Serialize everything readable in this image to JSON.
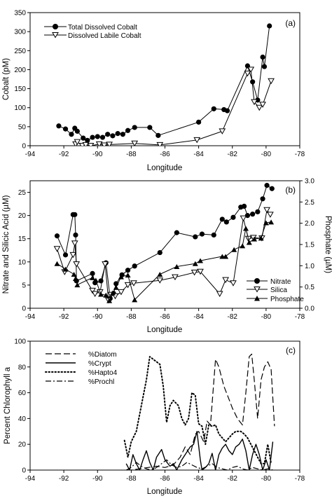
{
  "chart_data": [
    {
      "type": "line",
      "panel_label": "(a)",
      "xlabel": "Longitude",
      "ylabel": "Cobalt (pM)",
      "xlim": [
        -94,
        -78
      ],
      "ylim": [
        0,
        350
      ],
      "xticks": [
        -94,
        -92,
        -90,
        -88,
        -86,
        -84,
        -82,
        -80,
        -78
      ],
      "yticks": [
        0,
        50,
        100,
        150,
        200,
        250,
        300,
        350
      ],
      "legend_position": "top-left",
      "series": [
        {
          "name": "Total Dissolved Cobalt",
          "marker": "filled-circle",
          "x": [
            -92.3,
            -91.9,
            -91.55,
            -91.35,
            -91.2,
            -90.85,
            -90.6,
            -90.3,
            -90.0,
            -89.7,
            -89.4,
            -89.1,
            -88.8,
            -88.5,
            -88.2,
            -87.8,
            -86.9,
            -86.4,
            -84.0,
            -83.1,
            -82.5,
            -82.3,
            -81.1,
            -80.8,
            -80.5,
            -80.2,
            -80.1,
            -79.8
          ],
          "y": [
            52,
            44,
            30,
            46,
            38,
            20,
            14,
            22,
            24,
            22,
            30,
            26,
            32,
            30,
            40,
            48,
            48,
            27,
            62,
            97,
            95,
            92,
            210,
            168,
            120,
            233,
            208,
            315
          ]
        },
        {
          "name": "Dissolved Labile Cobalt",
          "marker": "open-triangle-down",
          "x": [
            -91.3,
            -91.2,
            -90.9,
            -90.7,
            -90.4,
            -89.9,
            -89.6,
            -89.3,
            -87.8,
            -86.3,
            -84.1,
            -82.6,
            -81.1,
            -80.9,
            -80.7,
            -80.4,
            -80.2,
            -79.7
          ],
          "y": [
            4,
            10,
            0,
            2,
            0,
            4,
            1,
            3,
            6,
            2,
            15,
            38,
            190,
            200,
            115,
            100,
            108,
            170
          ]
        }
      ]
    },
    {
      "type": "line",
      "panel_label": "(b)",
      "xlabel": "Longitude",
      "ylabel": "Nitrate and Silicic Acid (µM)",
      "ylabel_right": "Phosphate (µM)",
      "xlim": [
        -94,
        -78
      ],
      "ylim": [
        0,
        27.5
      ],
      "ylim_right": [
        0,
        3.0
      ],
      "xticks": [
        -94,
        -92,
        -90,
        -88,
        -86,
        -84,
        -82,
        -80,
        -78
      ],
      "yticks": [
        0,
        5,
        10,
        15,
        20,
        25
      ],
      "yticks_right": [
        0.0,
        0.5,
        1.0,
        1.5,
        2.0,
        2.5,
        3.0
      ],
      "legend_position": "bottom-right",
      "series": [
        {
          "name": "Nitrate",
          "marker": "filled-circle",
          "axis": "left",
          "x": [
            -92.4,
            -91.9,
            -91.45,
            -91.35,
            -91.3,
            -91.25,
            -90.3,
            -90.15,
            -89.8,
            -89.5,
            -89.25,
            -89.05,
            -88.9,
            -88.55,
            -88.2,
            -87.8,
            -86.3,
            -85.3,
            -84.2,
            -83.8,
            -83.1,
            -82.6,
            -82.35,
            -81.95,
            -81.5,
            -81.3,
            -81.1,
            -80.8,
            -80.5,
            -80.2,
            -79.95,
            -79.65
          ],
          "y": [
            15.6,
            11.5,
            20.2,
            20.2,
            15.8,
            5.9,
            7.5,
            5.5,
            5.9,
            9.8,
            2.1,
            3.2,
            5.3,
            7.2,
            8.2,
            9.1,
            12.0,
            16.3,
            15.4,
            16.0,
            15.8,
            19.2,
            18.6,
            19.6,
            21.8,
            22.0,
            20.0,
            20.3,
            20.8,
            23.6,
            26.5,
            25.8
          ]
        },
        {
          "name": "Silica",
          "marker": "open-triangle-down",
          "axis": "left",
          "x": [
            -92.4,
            -91.95,
            -91.45,
            -91.35,
            -91.25,
            -90.3,
            -90.15,
            -89.85,
            -89.55,
            -89.35,
            -89.2,
            -88.95,
            -88.6,
            -88.2,
            -87.85,
            -86.3,
            -85.4,
            -84.25,
            -83.9,
            -82.75,
            -82.4,
            -81.95,
            -81.35,
            -81.05,
            -80.75,
            -80.25,
            -79.95,
            -79.75
          ],
          "y": [
            12.8,
            7.8,
            11.5,
            14.0,
            9.5,
            3.8,
            3.1,
            3.5,
            9.5,
            1.7,
            2.9,
            2.6,
            3.5,
            5.0,
            5.4,
            6.0,
            6.7,
            7.7,
            7.9,
            3.1,
            6.1,
            5.4,
            19.4,
            15.0,
            15.2,
            15.1,
            21.2,
            20.2
          ]
        },
        {
          "name": "Phosphate",
          "marker": "filled-triangle-up",
          "axis": "right",
          "x": [
            -92.4,
            -91.9,
            -91.4,
            -91.3,
            -91.2,
            -90.3,
            -90.1,
            -89.8,
            -89.5,
            -89.3,
            -89.1,
            -88.9,
            -88.6,
            -88.2,
            -87.8,
            -86.3,
            -85.3,
            -84.2,
            -83.9,
            -82.6,
            -82.4,
            -81.9,
            -81.4,
            -81.2,
            -81.0,
            -80.7,
            -80.3,
            -80.0,
            -79.7
          ],
          "y": [
            1.05,
            0.92,
            0.8,
            0.7,
            0.55,
            0.72,
            0.66,
            0.33,
            0.31,
            0.18,
            0.36,
            0.49,
            0.74,
            0.78,
            0.2,
            0.8,
            0.98,
            1.05,
            1.12,
            1.22,
            1.22,
            1.38,
            1.47,
            1.88,
            1.55,
            1.63,
            1.65,
            2.01,
            2.03
          ]
        }
      ]
    },
    {
      "type": "line",
      "panel_label": "(c)",
      "xlabel": "Longitude",
      "ylabel": "Percent Chlorophyll a",
      "xlim": [
        -94,
        -78
      ],
      "ylim": [
        0,
        100
      ],
      "xticks": [
        -94,
        -92,
        -90,
        -88,
        -86,
        -84,
        -82,
        -80,
        -78
      ],
      "yticks": [
        0,
        20,
        40,
        60,
        80,
        100
      ],
      "legend_position": "top-left",
      "series": [
        {
          "name": "%Diatom",
          "style": "dashed",
          "x": [
            -88.3,
            -88.0,
            -87.5,
            -87.0,
            -86.5,
            -86.0,
            -85.5,
            -85.1,
            -84.8,
            -84.5,
            -84.2,
            -84.0,
            -83.7,
            -83.5,
            -83.3,
            -83.0,
            -82.8,
            -82.5,
            -82.2,
            -82.0,
            -81.7,
            -81.4,
            -81.2,
            -81.0,
            -80.85,
            -80.7,
            -80.5,
            -80.3,
            -80.1,
            -79.9,
            -79.7,
            -79.5
          ],
          "y": [
            0,
            0,
            1,
            2,
            3,
            2,
            4,
            10,
            18,
            12,
            28,
            30,
            22,
            38,
            35,
            86,
            80,
            65,
            55,
            48,
            40,
            35,
            60,
            88,
            90,
            70,
            40,
            70,
            80,
            84,
            78,
            34
          ]
        },
        {
          "name": "%Crypt",
          "style": "solid",
          "x": [
            -88.3,
            -88.1,
            -87.9,
            -87.7,
            -87.5,
            -87.3,
            -87.1,
            -86.9,
            -86.7,
            -86.5,
            -86.2,
            -86.0,
            -85.7,
            -85.5,
            -85.3,
            -85.0,
            -84.8,
            -84.5,
            -84.3,
            -84.1,
            -83.9,
            -83.8,
            -83.6,
            -83.4,
            -83.2,
            -83.0,
            -82.8,
            -82.6,
            -82.4,
            -82.2,
            -82.0,
            -81.8,
            -81.6,
            -81.4,
            -81.2,
            -81.0,
            -80.8,
            -80.6,
            -80.4,
            -80.2,
            -80.0,
            -79.8,
            -79.6
          ],
          "y": [
            5,
            0,
            12,
            5,
            0,
            8,
            15,
            6,
            0,
            10,
            16,
            8,
            3,
            5,
            0,
            8,
            12,
            18,
            20,
            30,
            8,
            0,
            2,
            5,
            13,
            0,
            12,
            17,
            20,
            15,
            12,
            18,
            20,
            24,
            15,
            0,
            12,
            20,
            12,
            0,
            8,
            0,
            22
          ]
        },
        {
          "name": "%Hapto4",
          "style": "dotted",
          "x": [
            -88.4,
            -88.2,
            -88.0,
            -87.7,
            -87.4,
            -87.1,
            -86.9,
            -86.7,
            -86.5,
            -86.3,
            -86.1,
            -85.9,
            -85.7,
            -85.5,
            -85.2,
            -85.0,
            -84.8,
            -84.6,
            -84.4,
            -84.2,
            -84.0,
            -83.8,
            -83.6,
            -83.4,
            -83.2,
            -83.0,
            -82.8,
            -82.6,
            -82.4,
            -82.2,
            -82.0,
            -81.8,
            -81.5,
            -81.3,
            -81.1,
            -80.9,
            -80.7,
            -80.5,
            -80.3,
            -80.1,
            -79.9,
            -79.7
          ],
          "y": [
            23,
            10,
            22,
            30,
            50,
            70,
            88,
            86,
            84,
            82,
            65,
            37,
            50,
            54,
            50,
            40,
            35,
            40,
            60,
            58,
            36,
            34,
            20,
            35,
            34,
            35,
            28,
            25,
            22,
            25,
            28,
            30,
            30,
            28,
            25,
            20,
            15,
            10,
            5,
            5,
            20,
            5
          ]
        },
        {
          "name": "%Prochl",
          "style": "dash-dot",
          "x": [
            -88.3,
            -88.0,
            -87.7,
            -87.4,
            -87.1,
            -86.8,
            -86.5,
            -86.2,
            -85.9,
            -85.6,
            -85.3,
            -85.0,
            -84.7,
            -84.4,
            -84.1,
            -83.8,
            -83.5,
            -83.2,
            -82.9,
            -82.6,
            -82.3,
            -82.0,
            -81.7,
            -81.4,
            -81.1,
            -80.8,
            -80.5,
            -80.2,
            -79.9,
            -79.6
          ],
          "y": [
            0,
            2,
            6,
            3,
            1,
            0,
            2,
            5,
            8,
            4,
            2,
            3,
            6,
            4,
            2,
            1,
            3,
            5,
            2,
            1,
            0,
            2,
            3,
            1,
            0,
            2,
            1,
            0,
            1,
            0
          ]
        }
      ]
    }
  ]
}
